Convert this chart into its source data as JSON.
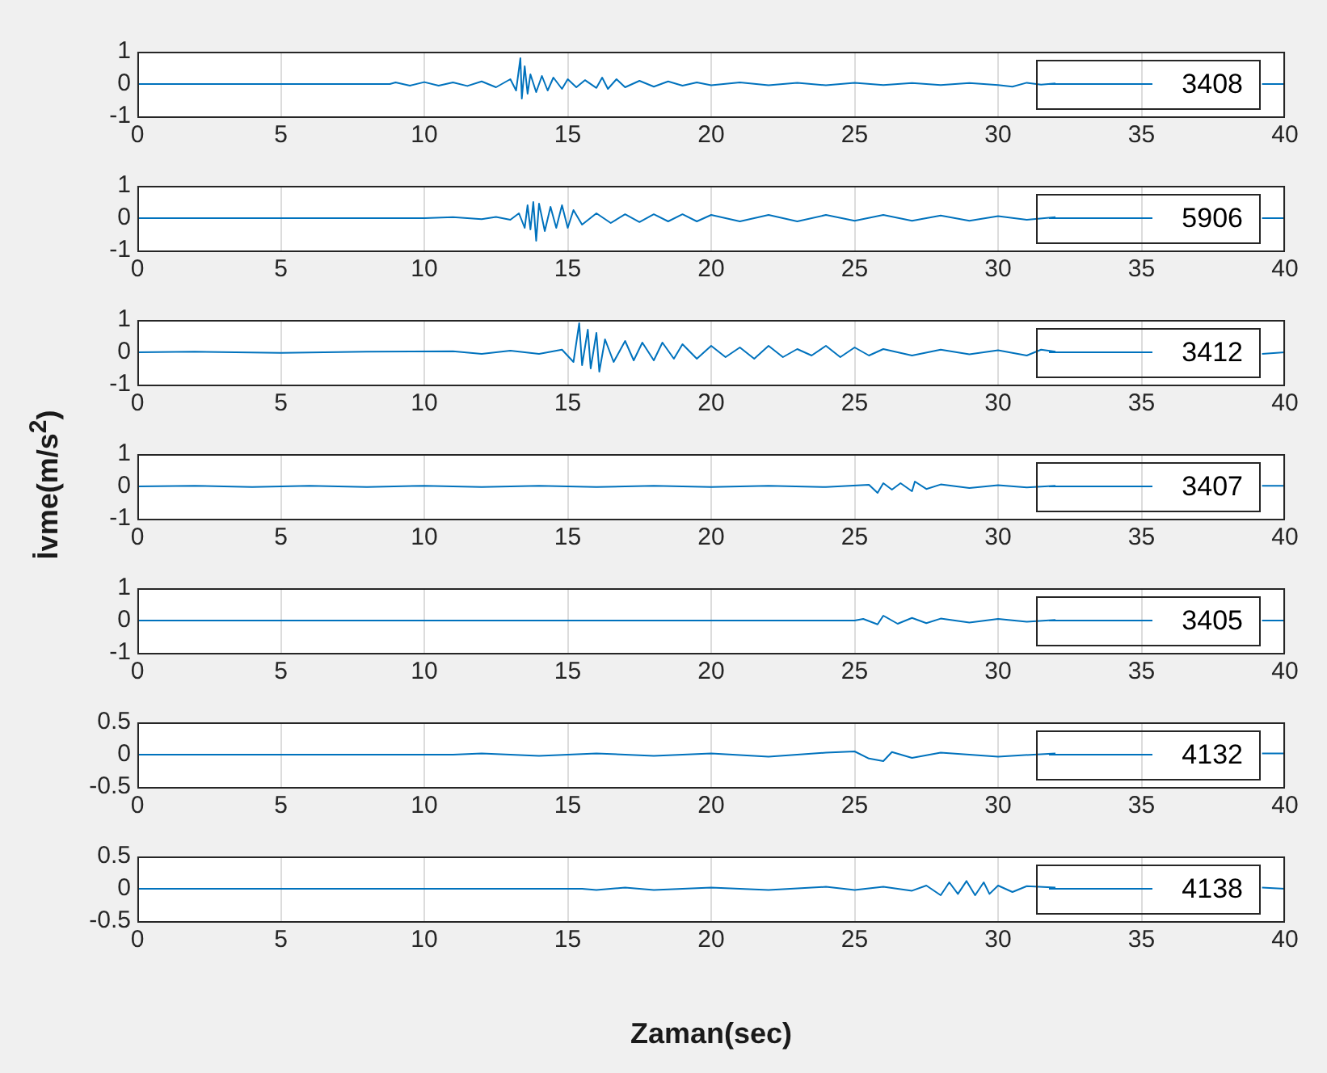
{
  "chart_data": [
    {
      "type": "line",
      "xlim": [
        0,
        40
      ],
      "xticks": [
        0,
        5,
        10,
        15,
        20,
        25,
        30,
        35,
        40
      ],
      "ylim": [
        -1,
        1
      ],
      "yticks": [
        -1,
        0,
        1
      ],
      "grid": "x",
      "legend": "right",
      "series": [
        {
          "name": "3408",
          "color": "#0072bd",
          "x": [
            0,
            8.8,
            9,
            9.5,
            10,
            10.5,
            11,
            11.5,
            12,
            12.5,
            13,
            13.2,
            13.35,
            13.4,
            13.5,
            13.6,
            13.7,
            13.9,
            14.1,
            14.3,
            14.5,
            14.8,
            15,
            15.3,
            15.6,
            16,
            16.2,
            16.4,
            16.7,
            17,
            17.5,
            18,
            18.5,
            19,
            19.5,
            20,
            21,
            22,
            23,
            24,
            25,
            26,
            27,
            28,
            29,
            30,
            30.5,
            31,
            31.5,
            32,
            35,
            39.2,
            40
          ],
          "values": [
            0,
            0,
            0.05,
            -0.05,
            0.06,
            -0.05,
            0.05,
            -0.06,
            0.08,
            -0.1,
            0.15,
            -0.2,
            0.8,
            -0.45,
            0.55,
            -0.3,
            0.3,
            -0.25,
            0.25,
            -0.2,
            0.2,
            -0.15,
            0.15,
            -0.1,
            0.12,
            -0.12,
            0.2,
            -0.15,
            0.15,
            -0.1,
            0.1,
            -0.08,
            0.08,
            -0.05,
            0.05,
            -0.04,
            0.05,
            -0.04,
            0.04,
            -0.04,
            0.04,
            -0.03,
            0.03,
            -0.03,
            0.03,
            -0.03,
            -0.08,
            0.04,
            -0.02,
            0.02,
            null,
            0,
            0
          ]
        }
      ]
    },
    {
      "type": "line",
      "xlim": [
        0,
        40
      ],
      "xticks": [
        0,
        5,
        10,
        15,
        20,
        25,
        30,
        35,
        40
      ],
      "ylim": [
        -1,
        1
      ],
      "yticks": [
        -1,
        0,
        1
      ],
      "grid": "x",
      "legend": "right",
      "series": [
        {
          "name": "5906",
          "color": "#0072bd",
          "x": [
            0,
            10,
            11,
            12,
            12.5,
            13,
            13.3,
            13.5,
            13.6,
            13.7,
            13.8,
            13.9,
            14,
            14.2,
            14.4,
            14.6,
            14.8,
            15,
            15.2,
            15.5,
            16,
            16.5,
            17,
            17.5,
            18,
            18.5,
            19,
            19.5,
            20,
            21,
            22,
            23,
            24,
            25,
            26,
            27,
            28,
            29,
            30,
            31,
            32,
            35,
            39.2,
            40
          ],
          "values": [
            0,
            0,
            0.03,
            -0.03,
            0.04,
            -0.05,
            0.15,
            -0.3,
            0.4,
            -0.35,
            0.5,
            -0.7,
            0.45,
            -0.4,
            0.35,
            -0.3,
            0.4,
            -0.3,
            0.25,
            -0.2,
            0.15,
            -0.15,
            0.12,
            -0.12,
            0.12,
            -0.1,
            0.12,
            -0.1,
            0.1,
            -0.1,
            0.1,
            -0.1,
            0.1,
            -0.08,
            0.1,
            -0.08,
            0.08,
            -0.08,
            0.06,
            -0.05,
            0.03,
            null,
            0,
            0
          ]
        }
      ]
    },
    {
      "type": "line",
      "xlim": [
        0,
        40
      ],
      "xticks": [
        0,
        5,
        10,
        15,
        20,
        25,
        30,
        35,
        40
      ],
      "ylim": [
        -1,
        1
      ],
      "yticks": [
        -1,
        0,
        1
      ],
      "grid": "x",
      "legend": "right",
      "series": [
        {
          "name": "3412",
          "color": "#0072bd",
          "x": [
            0,
            2,
            5,
            8,
            11,
            12,
            13,
            14,
            14.8,
            15.2,
            15.4,
            15.5,
            15.7,
            15.8,
            16,
            16.1,
            16.3,
            16.6,
            17,
            17.3,
            17.6,
            18,
            18.3,
            18.7,
            19,
            19.5,
            20,
            20.5,
            21,
            21.5,
            22,
            22.5,
            23,
            23.5,
            24,
            24.5,
            25,
            25.5,
            26,
            27,
            28,
            29,
            30,
            31,
            31.5,
            32,
            35,
            39.2,
            40
          ],
          "values": [
            0,
            0.02,
            -0.02,
            0.02,
            0.03,
            -0.05,
            0.05,
            -0.05,
            0.08,
            -0.3,
            0.9,
            -0.4,
            0.7,
            -0.5,
            0.6,
            -0.6,
            0.4,
            -0.3,
            0.35,
            -0.25,
            0.3,
            -0.25,
            0.3,
            -0.2,
            0.25,
            -0.2,
            0.2,
            -0.15,
            0.15,
            -0.2,
            0.2,
            -0.15,
            0.1,
            -0.1,
            0.2,
            -0.15,
            0.15,
            -0.1,
            0.1,
            -0.1,
            0.08,
            -0.06,
            0.06,
            -0.1,
            0.08,
            0.02,
            null,
            -0.05,
            0
          ]
        }
      ]
    },
    {
      "type": "line",
      "xlim": [
        0,
        40
      ],
      "xticks": [
        0,
        5,
        10,
        15,
        20,
        25,
        30,
        35,
        40
      ],
      "ylim": [
        -1,
        1
      ],
      "yticks": [
        -1,
        0,
        1
      ],
      "grid": "x",
      "legend": "right",
      "ylabel": "İvme(m/s$^{2}$)",
      "series": [
        {
          "name": "3407",
          "color": "#0072bd",
          "x": [
            0,
            2,
            4,
            6,
            8,
            10,
            12,
            14,
            16,
            18,
            20,
            22,
            24,
            25.5,
            25.8,
            26,
            26.3,
            26.6,
            27,
            27.1,
            27.5,
            28,
            29,
            30,
            31,
            32,
            35,
            39.2,
            40
          ],
          "values": [
            0,
            0.02,
            -0.02,
            0.02,
            -0.02,
            0.02,
            -0.02,
            0.02,
            -0.02,
            0.02,
            -0.02,
            0.02,
            -0.02,
            0.05,
            -0.2,
            0.1,
            -0.1,
            0.1,
            -0.15,
            0.15,
            -0.08,
            0.06,
            -0.05,
            0.04,
            -0.03,
            0.02,
            null,
            0.02,
            0.02
          ]
        }
      ]
    },
    {
      "type": "line",
      "xlim": [
        0,
        40
      ],
      "xticks": [
        0,
        5,
        10,
        15,
        20,
        25,
        30,
        35,
        40
      ],
      "ylim": [
        -1,
        1
      ],
      "yticks": [
        -1,
        0,
        1
      ],
      "grid": "x",
      "legend": "right",
      "series": [
        {
          "name": "3405",
          "color": "#0072bd",
          "x": [
            0,
            25,
            25.3,
            25.8,
            26,
            26.5,
            27,
            27.5,
            28,
            29,
            30,
            31,
            32,
            35,
            39.2,
            40
          ],
          "values": [
            0,
            0,
            0.05,
            -0.12,
            0.15,
            -0.1,
            0.08,
            -0.08,
            0.06,
            -0.06,
            0.05,
            -0.04,
            0.02,
            null,
            0,
            0
          ]
        }
      ]
    },
    {
      "type": "line",
      "xlim": [
        0,
        40
      ],
      "xticks": [
        0,
        5,
        10,
        15,
        20,
        25,
        30,
        35,
        40
      ],
      "ylim": [
        -0.5,
        0.5
      ],
      "yticks": [
        -0.5,
        0,
        0.5
      ],
      "grid": "x",
      "legend": "right",
      "series": [
        {
          "name": "4132",
          "color": "#0072bd",
          "x": [
            0,
            11,
            12,
            14,
            16,
            18,
            20,
            22,
            24,
            25,
            25.5,
            26,
            26.3,
            27,
            28,
            30,
            32,
            35,
            39.2,
            40
          ],
          "values": [
            0,
            0,
            0.02,
            -0.02,
            0.02,
            -0.02,
            0.02,
            -0.03,
            0.03,
            0.05,
            -0.06,
            -0.1,
            0.04,
            -0.05,
            0.03,
            -0.03,
            0.02,
            null,
            0.02,
            0.02
          ]
        }
      ]
    },
    {
      "type": "line",
      "xlim": [
        0,
        40
      ],
      "xticks": [
        0,
        5,
        10,
        15,
        20,
        25,
        30,
        35,
        40
      ],
      "ylim": [
        -0.5,
        0.5
      ],
      "yticks": [
        -0.5,
        0,
        0.5
      ],
      "grid": "x",
      "legend": "right",
      "xlabel": "Zaman(sec)",
      "series": [
        {
          "name": "4138",
          "color": "#0072bd",
          "x": [
            0,
            15.5,
            16,
            17,
            18,
            20,
            22,
            24,
            25,
            26,
            27,
            27.5,
            28,
            28.3,
            28.6,
            28.9,
            29.2,
            29.5,
            29.7,
            30,
            30.5,
            31,
            32,
            35,
            39.2,
            40
          ],
          "values": [
            0,
            0,
            -0.02,
            0.02,
            -0.02,
            0.02,
            -0.02,
            0.03,
            -0.02,
            0.03,
            -0.03,
            0.05,
            -0.1,
            0.1,
            -0.08,
            0.12,
            -0.1,
            0.1,
            -0.08,
            0.05,
            -0.05,
            0.04,
            0.02,
            null,
            0.02,
            0
          ]
        }
      ]
    }
  ]
}
